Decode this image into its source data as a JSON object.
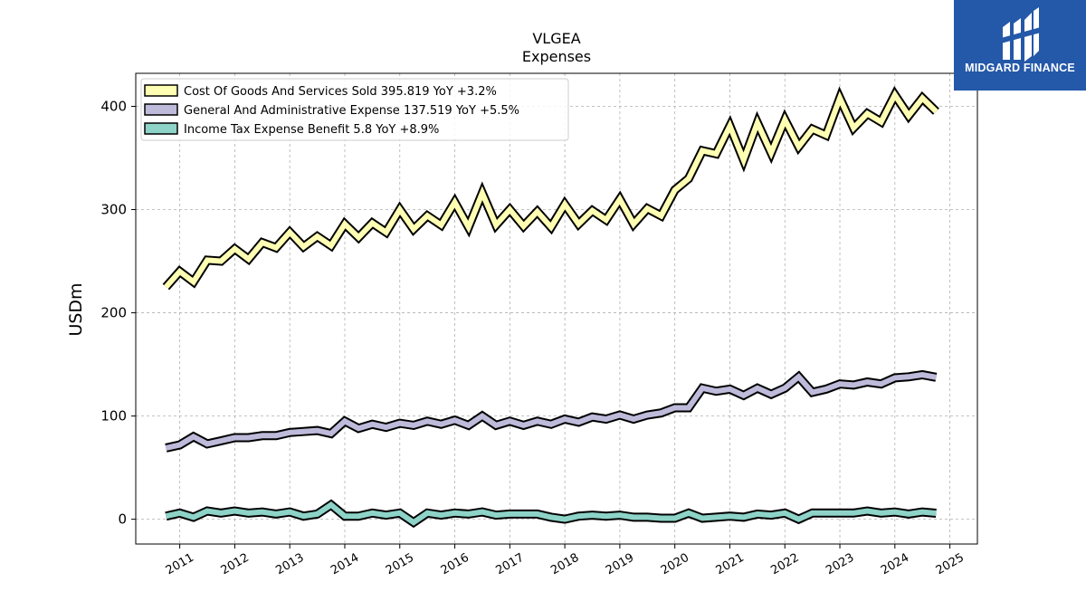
{
  "brand": {
    "name": "MIDGARD FINANCE",
    "bg_color": "#2458a8",
    "icon": "midgard-logo-icon"
  },
  "chart_data": {
    "type": "line",
    "title": "VLGEA",
    "subtitle": "Expenses",
    "xlabel": "",
    "ylabel": "USDm",
    "xlim": [
      2010.2,
      2025.5
    ],
    "ylim": [
      -24,
      432
    ],
    "yticks": [
      0,
      100,
      200,
      300,
      400
    ],
    "xticks": [
      "2011",
      "2012",
      "2013",
      "2014",
      "2015",
      "2016",
      "2017",
      "2018",
      "2019",
      "2020",
      "2021",
      "2022",
      "2023",
      "2024",
      "2025"
    ],
    "grid": true,
    "legend_position": "top-left",
    "x": [
      2010.75,
      2011.0,
      2011.25,
      2011.5,
      2011.75,
      2012.0,
      2012.25,
      2012.5,
      2012.75,
      2013.0,
      2013.25,
      2013.5,
      2013.75,
      2014.0,
      2014.25,
      2014.5,
      2014.75,
      2015.0,
      2015.25,
      2015.5,
      2015.75,
      2016.0,
      2016.25,
      2016.5,
      2016.75,
      2017.0,
      2017.25,
      2017.5,
      2017.75,
      2018.0,
      2018.25,
      2018.5,
      2018.75,
      2019.0,
      2019.25,
      2019.5,
      2019.75,
      2020.0,
      2020.25,
      2020.5,
      2020.75,
      2021.0,
      2021.25,
      2021.5,
      2021.75,
      2022.0,
      2022.25,
      2022.5,
      2022.75,
      2023.0,
      2023.25,
      2023.5,
      2023.75,
      2024.0,
      2024.25,
      2024.5,
      2024.75
    ],
    "series": [
      {
        "name": "Cost Of Goods And Services Sold  395.819 YoY +3.2%",
        "color": "#ffffb3",
        "values": [
          225,
          240,
          230,
          251,
          250,
          262,
          252,
          268,
          263,
          278,
          264,
          274,
          265,
          286,
          273,
          287,
          278,
          300,
          281,
          294,
          285,
          307,
          283,
          316,
          285,
          300,
          284,
          298,
          283,
          305,
          286,
          299,
          290,
          310,
          286,
          301,
          294,
          319,
          330,
          357,
          354,
          381,
          348,
          384,
          355,
          387,
          361,
          378,
          372,
          408,
          379,
          393,
          385,
          411,
          391,
          408,
          395
        ]
      },
      {
        "name": "General And Administrative Expense  137.519 YoY +5.5%",
        "color": "#bebada",
        "values": [
          69,
          72,
          80,
          73,
          76,
          79,
          79,
          81,
          81,
          84,
          85,
          86,
          83,
          95,
          88,
          92,
          89,
          93,
          91,
          95,
          92,
          96,
          91,
          100,
          91,
          95,
          91,
          95,
          92,
          97,
          94,
          99,
          97,
          101,
          97,
          101,
          103,
          108,
          108,
          127,
          124,
          126,
          120,
          127,
          121,
          127,
          138,
          123,
          126,
          131,
          130,
          133,
          131,
          137,
          138,
          140,
          137.5
        ]
      },
      {
        "name": "Income Tax Expense Benefit  5.8 YoY +8.9%",
        "color": "#8dd3c7",
        "values": [
          3,
          6,
          2,
          8,
          6,
          8,
          6,
          7,
          5,
          7,
          3,
          5,
          14,
          3,
          3,
          6,
          4,
          6,
          -3,
          6,
          4,
          6,
          5,
          7,
          4,
          5,
          5,
          5,
          2,
          0,
          3,
          4,
          3,
          4,
          2,
          2,
          1,
          1,
          6,
          1,
          2,
          3,
          2,
          5,
          4,
          6,
          0,
          6,
          6,
          6,
          6,
          8,
          6,
          7,
          5,
          7,
          5.8
        ]
      }
    ]
  }
}
